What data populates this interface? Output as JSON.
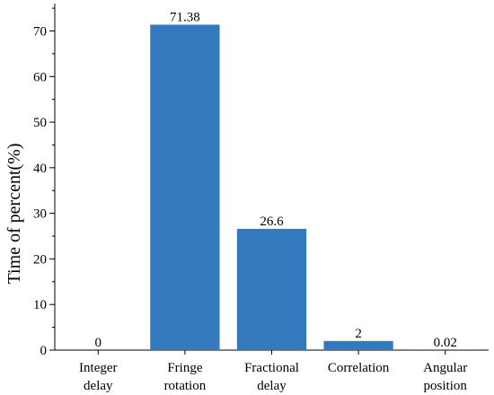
{
  "chart_data": {
    "type": "bar",
    "categories": [
      [
        "Integer",
        "delay"
      ],
      [
        "Fringe",
        "rotation"
      ],
      [
        "Fractional",
        "delay"
      ],
      [
        "Correlation"
      ],
      [
        "Angular",
        "position"
      ]
    ],
    "values": [
      0,
      71.38,
      26.6,
      2,
      0.02
    ],
    "data_labels": [
      "0",
      "71.38",
      "26.6",
      "2",
      "0.02"
    ],
    "title": "",
    "xlabel": "",
    "ylabel": "Time of percent(%)",
    "ylim": [
      0,
      76
    ],
    "yticks": [
      0,
      10,
      20,
      30,
      40,
      50,
      60,
      70
    ],
    "bar_color": "#3478be",
    "grid": false
  }
}
